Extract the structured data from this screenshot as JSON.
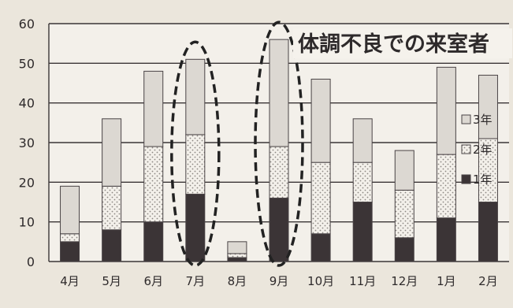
{
  "chart_data": {
    "type": "bar",
    "stacked": true,
    "title": "体調不良での来室者",
    "categories": [
      "4月",
      "5月",
      "6月",
      "7月",
      "8月",
      "9月",
      "10月",
      "11月",
      "12月",
      "1月",
      "2月"
    ],
    "series": [
      {
        "name": "1年",
        "values": [
          5,
          8,
          10,
          17,
          1,
          16,
          7,
          15,
          6,
          11,
          15
        ],
        "color": "#3b3436",
        "pattern": "solid"
      },
      {
        "name": "2年",
        "values": [
          2,
          11,
          19,
          15,
          1,
          13,
          18,
          10,
          12,
          16,
          16
        ],
        "color": "#f2efe8",
        "pattern": "dots"
      },
      {
        "name": "3年",
        "values": [
          12,
          17,
          19,
          19,
          3,
          27,
          21,
          11,
          10,
          22,
          16
        ],
        "color": "#dcd8d2",
        "pattern": "light"
      }
    ],
    "y_ticks": [
      0,
      10,
      20,
      30,
      40,
      50,
      60
    ],
    "ylim": [
      0,
      60
    ],
    "grid": true,
    "legend_position": "right",
    "legend_order": [
      "3年",
      "2年",
      "1年"
    ],
    "highlighted_categories": [
      "7月",
      "9月"
    ]
  }
}
